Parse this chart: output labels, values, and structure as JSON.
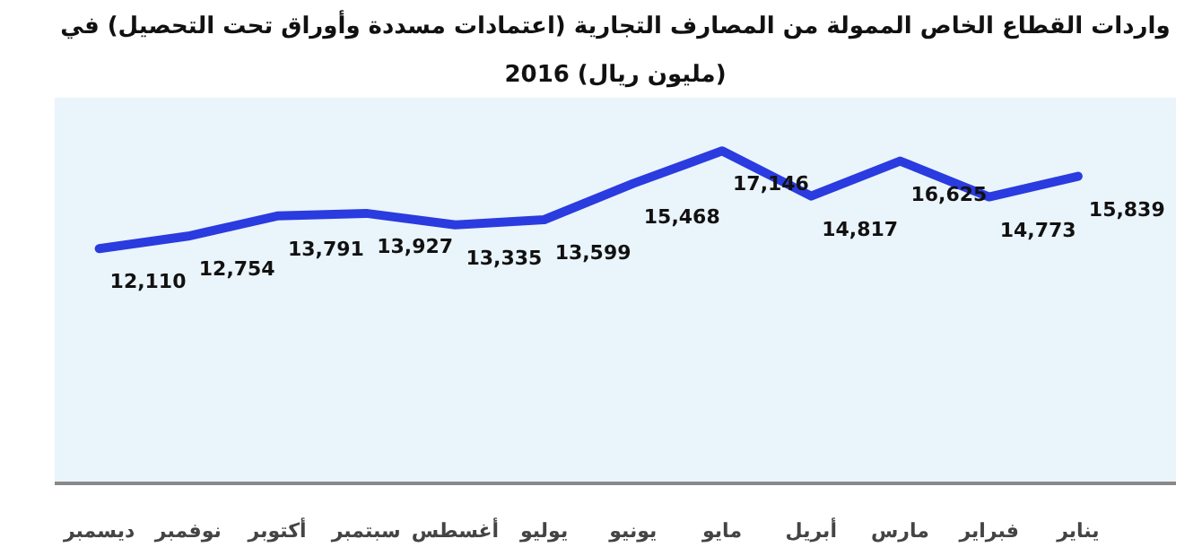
{
  "chart_data": {
    "type": "line",
    "title": "واردات القطاع الخاص الممولة من المصارف التجارية (اعتمادات مسددة وأوراق تحت التحصيل) في",
    "subtitle": "2016 (مليون ريال)",
    "categories": [
      "ديسمبر",
      "نوفمبر",
      "أكتوبر",
      "سبتمبر",
      "أغسطس",
      "يوليو",
      "يونيو",
      "مايو",
      "أبريل",
      "مارس",
      "فبراير",
      "يناير"
    ],
    "series": [
      {
        "color": "#2a3be0",
        "values": [
          12110,
          12754,
          13791,
          13927,
          13335,
          13599,
          15468,
          17146,
          14817,
          16625,
          14773,
          15839
        ],
        "value_labels": [
          "12,110",
          "12,754",
          "13,791",
          "13,927",
          "13,335",
          "13,599",
          "15,468",
          "17,146",
          "14,817",
          "16,625",
          "14,773",
          "15,839"
        ]
      }
    ],
    "marker": "none",
    "line_style": "solid",
    "grid": false,
    "tick_labels": "x"
  }
}
